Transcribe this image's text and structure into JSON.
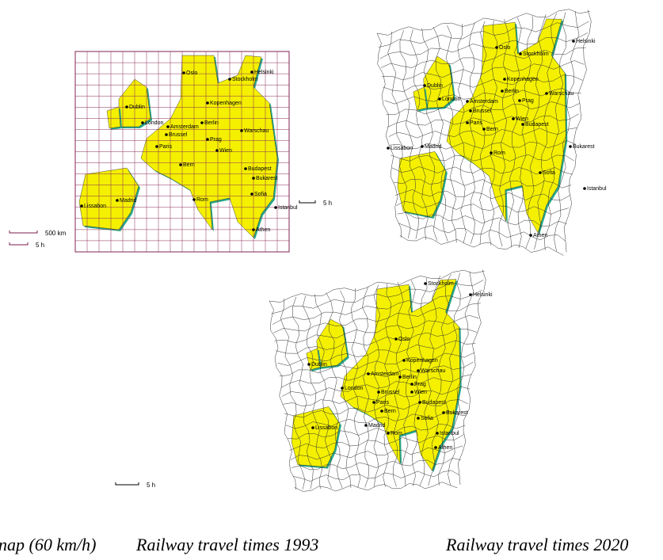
{
  "panels": [
    {
      "scale_labels": [
        "500 km",
        "5 h"
      ],
      "cities": [
        "Oslo",
        "Stockholm",
        "Helsinki",
        "Dublin",
        "Kopenhagen",
        "London",
        "Amsterdam",
        "Berlin",
        "Warschau",
        "Brussel",
        "Paris",
        "Prag",
        "Wien",
        "Bern",
        "Budapest",
        "Madrid",
        "Lissabon",
        "Rom",
        "Bukarest",
        "Sofia",
        "Athen",
        "Istanbul"
      ]
    },
    {
      "scale_labels": [
        "5 h"
      ],
      "cities": [
        "Oslo",
        "Stockholm",
        "Helsinki",
        "Dublin",
        "Kopenhagen",
        "London",
        "Amsterdam",
        "Berlin",
        "Warschau",
        "Brussel",
        "Paris",
        "Prag",
        "Wien",
        "Bern",
        "Budapest",
        "Madrid",
        "Lissabon",
        "Rom",
        "Bukarest",
        "Sofia",
        "Athen",
        "Istanbul"
      ]
    },
    {
      "scale_labels": [
        "5 h"
      ],
      "cities": [
        "Oslo",
        "Stockholm",
        "Helsinki",
        "Dublin",
        "Kopenhagen",
        "London",
        "Amsterdam",
        "Berlin",
        "Warschau",
        "Brussel",
        "Paris",
        "Prag",
        "Wien",
        "Bern",
        "Budapest",
        "Madrid",
        "Lissabon",
        "Rom",
        "Bukarest",
        "Sofia",
        "Athen",
        "Istanbul"
      ]
    }
  ],
  "captions": [
    "nap (60 km/h)",
    "Railway travel times 1993",
    "Railway travel times 2020"
  ]
}
